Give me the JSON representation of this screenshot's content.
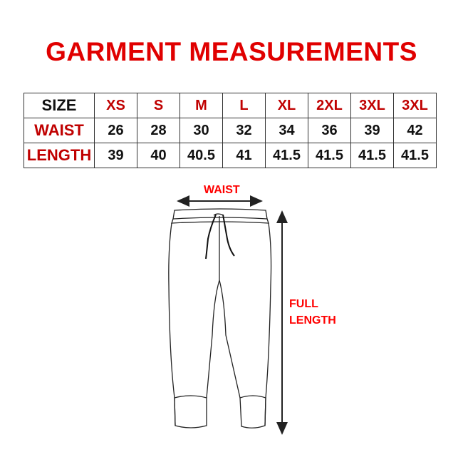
{
  "title": "GARMENT MEASUREMENTS",
  "table": {
    "rows": [
      {
        "label": "SIZE",
        "values": [
          "XS",
          "S",
          "M",
          "L",
          "XL",
          "2XL",
          "3XL",
          "3XL"
        ]
      },
      {
        "label": "WAIST",
        "values": [
          "26",
          "28",
          "30",
          "32",
          "34",
          "36",
          "39",
          "42"
        ]
      },
      {
        "label": "LENGTH",
        "values": [
          "39",
          "40",
          "40.5",
          "41",
          "41.5",
          "41.5",
          "41.5",
          "41.5"
        ]
      }
    ]
  },
  "diagram": {
    "waist_label": "WAIST",
    "length_label_line1": "FULL",
    "length_label_line2": "LENGTH"
  },
  "colors": {
    "accent": "#e00000",
    "size_text": "#c00000"
  }
}
